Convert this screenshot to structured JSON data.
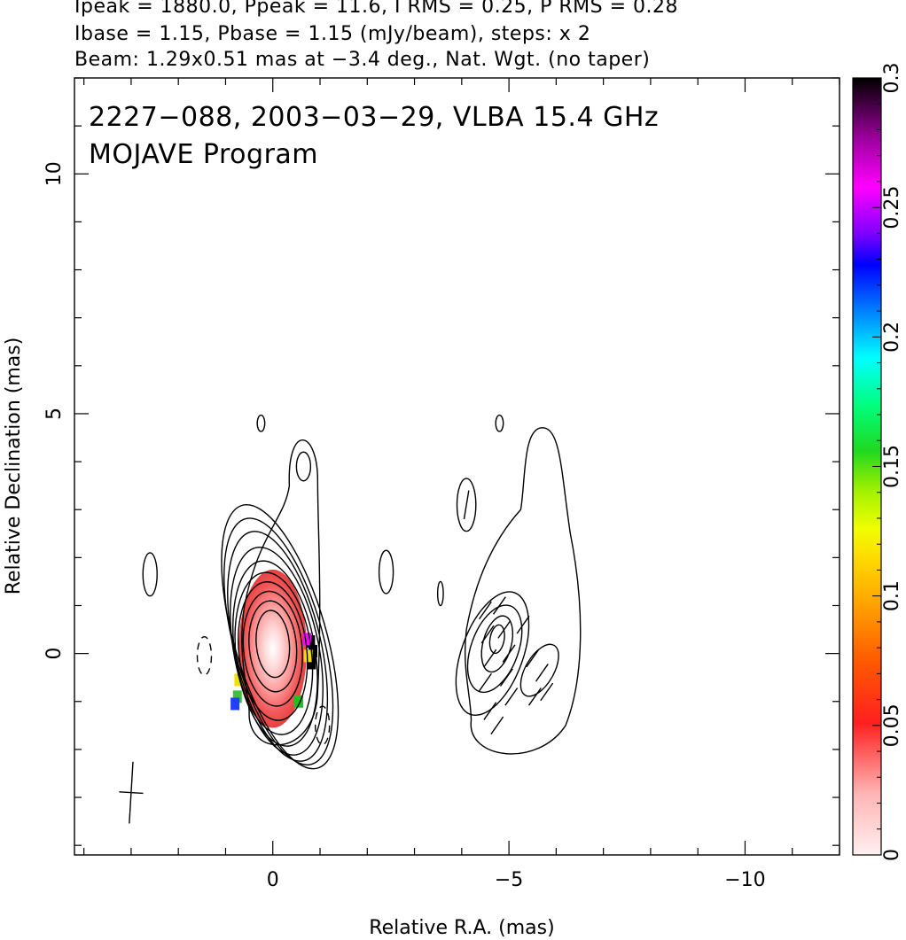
{
  "header": {
    "line1": "Ipeak = 1880.0, Ppeak = 11.6, I RMS = 0.25, P RMS = 0.28",
    "line2": "Ibase = 1.15, Pbase = 1.15 (mJy/beam), steps: x 2",
    "line3": "Beam: 1.29x0.51 mas at −3.4 deg., Nat. Wgt. (no taper)"
  },
  "chart_data": {
    "type": "contour",
    "title_line1": "2227−088, 2003−03−29, VLBA 15.4 GHz",
    "title_line2": "MOJAVE Program",
    "xlabel": "Relative R.A. (mas)",
    "ylabel": "Relative Declination (mas)",
    "xlim": [
      4.2,
      -12.0
    ],
    "ylim": [
      -4.2,
      12.0
    ],
    "x_ticks": [
      0,
      -5,
      -10
    ],
    "x_tick_labels": [
      "0",
      "−5",
      "−10"
    ],
    "y_ticks": [
      0,
      5,
      10
    ],
    "y_tick_labels": [
      "0",
      "5",
      "10"
    ],
    "colorbar": {
      "min": 0,
      "max": 0.3,
      "ticks": [
        0,
        0.05,
        0.1,
        0.15,
        0.2,
        0.25,
        0.3
      ],
      "tick_labels": [
        "0",
        "0.05",
        "0.1",
        "0.15",
        "0.2",
        "0.25",
        "0.3"
      ]
    },
    "beam": {
      "major_mas": 1.29,
      "minor_mas": 0.51,
      "pa_deg": -3.4,
      "center": [
        3.0,
        -2.9
      ]
    },
    "total_intensity_contours": [
      {
        "cx": 0.0,
        "cy": 0.2,
        "rx": 0.35,
        "ry": 0.7,
        "rot": -5
      },
      {
        "cx": 0.0,
        "cy": 0.15,
        "rx": 0.5,
        "ry": 0.95,
        "rot": -5
      },
      {
        "cx": 0.0,
        "cy": 0.1,
        "rx": 0.62,
        "ry": 1.2,
        "rot": -5
      },
      {
        "cx": 0.0,
        "cy": 0.05,
        "rx": 0.72,
        "ry": 1.45,
        "rot": -6
      },
      {
        "cx": -0.02,
        "cy": 0.0,
        "rx": 0.8,
        "ry": 1.7,
        "rot": -7
      },
      {
        "cx": -0.05,
        "cy": 0.0,
        "rx": 0.85,
        "ry": 1.95,
        "rot": -9
      },
      {
        "cx": -0.08,
        "cy": 0.05,
        "rx": 0.9,
        "ry": 2.2,
        "rot": -11
      },
      {
        "cx": -0.1,
        "cy": 0.15,
        "rx": 0.92,
        "ry": 2.45,
        "rot": -13
      },
      {
        "cx": -0.12,
        "cy": 0.25,
        "rx": 0.95,
        "ry": 2.65,
        "rot": -15
      },
      {
        "cx": -0.15,
        "cy": 0.35,
        "rx": 0.98,
        "ry": 2.85,
        "rot": -16
      }
    ],
    "knot_contour": {
      "cx": -0.65,
      "cy": 3.9,
      "rx": 0.15,
      "ry": 0.3
    },
    "isolated_contours": [
      {
        "cx": 2.6,
        "cy": 1.65,
        "rx": 0.15,
        "ry": 0.45,
        "dashed": false
      },
      {
        "cx": 0.25,
        "cy": 4.8,
        "rx": 0.08,
        "ry": 0.17,
        "dashed": false
      },
      {
        "cx": 1.45,
        "cy": -0.05,
        "rx": 0.15,
        "ry": 0.4,
        "dashed": true
      },
      {
        "cx": -1.05,
        "cy": -1.5,
        "rx": 0.15,
        "ry": 0.4,
        "dashed": true
      },
      {
        "cx": -2.4,
        "cy": 1.7,
        "rx": 0.15,
        "ry": 0.45,
        "dashed": false
      },
      {
        "cx": -4.1,
        "cy": 3.1,
        "rx": 0.2,
        "ry": 0.55,
        "dashed": false
      },
      {
        "cx": -3.55,
        "cy": 1.25,
        "rx": 0.06,
        "ry": 0.25,
        "dashed": false
      },
      {
        "cx": -4.8,
        "cy": 4.8,
        "rx": 0.08,
        "ry": 0.17,
        "dashed": false
      }
    ],
    "pol_contours": [
      {
        "cx": -4.75,
        "cy": 0.3,
        "rx": 0.15,
        "ry": 0.3,
        "rot": 10
      },
      {
        "cx": -4.75,
        "cy": 0.2,
        "rx": 0.3,
        "ry": 0.6,
        "rot": 15
      },
      {
        "cx": -4.7,
        "cy": 0.1,
        "rx": 0.5,
        "ry": 0.95,
        "rot": 20
      },
      {
        "cx": -4.65,
        "cy": 0.0,
        "rx": 0.65,
        "ry": 1.35,
        "rot": 20
      },
      {
        "cx": -5.65,
        "cy": -0.35,
        "rx": 0.3,
        "ry": 0.6,
        "rot": 30
      }
    ]
  }
}
